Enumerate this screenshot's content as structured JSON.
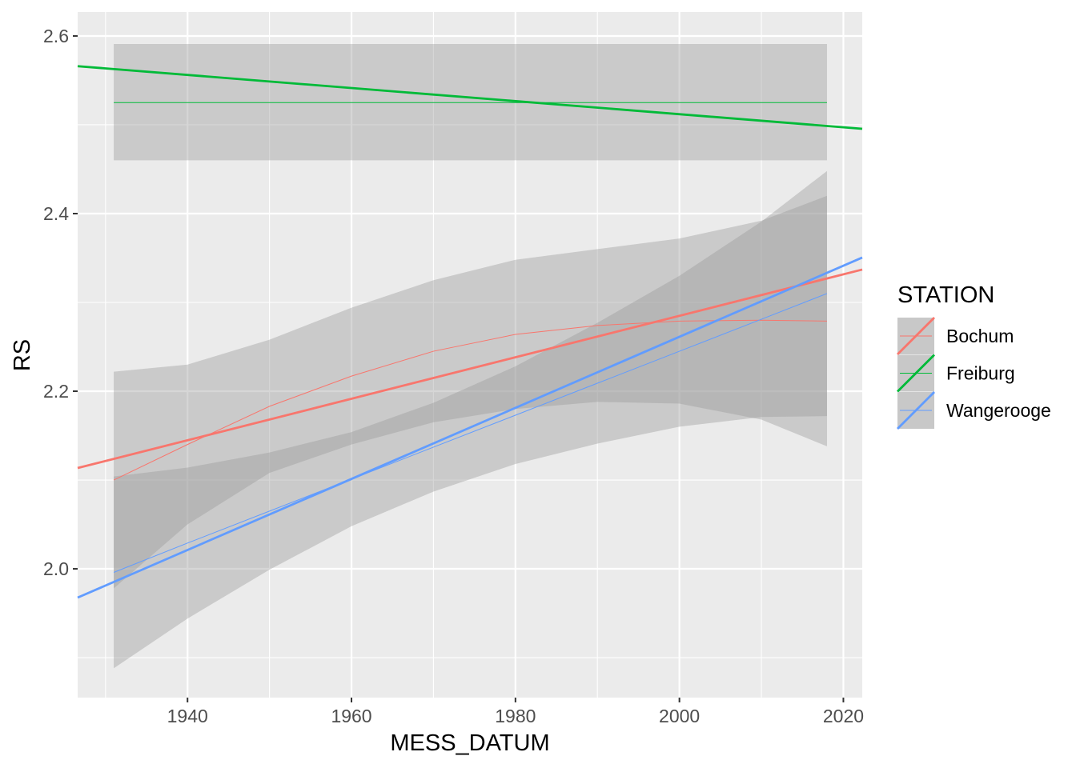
{
  "chart_data": {
    "type": "line",
    "title": "",
    "xlabel": "MESS_DATUM",
    "ylabel": "RS",
    "xlim": [
      1926.6,
      2022.3
    ],
    "ylim": [
      1.855,
      2.627
    ],
    "x_ticks": [
      1940,
      1960,
      1980,
      2000,
      2020
    ],
    "x_tick_labels": [
      "1940",
      "1960",
      "1980",
      "2000",
      "2020"
    ],
    "y_ticks": [
      2.0,
      2.2,
      2.4,
      2.6
    ],
    "y_tick_labels": [
      "2.0",
      "2.2",
      "2.4",
      "2.6"
    ],
    "grid": true,
    "legend": {
      "title": "STATION",
      "placement": "right"
    },
    "smooth_x": [
      1931,
      1940,
      1950,
      1960,
      1970,
      1980,
      1990,
      2000,
      2010,
      2018
    ],
    "series": [
      {
        "name": "Bochum",
        "color": "#F8766D",
        "linear_fit": {
          "x": [
            1926.6,
            2022.3
          ],
          "y": [
            2.1135,
            2.337
          ]
        },
        "smooth": [
          2.1,
          2.14,
          2.183,
          2.217,
          2.245,
          2.264,
          2.274,
          2.279,
          2.28,
          2.279
        ],
        "smooth_lower": [
          1.978,
          2.05,
          2.108,
          2.14,
          2.165,
          2.18,
          2.188,
          2.186,
          2.168,
          2.138
        ],
        "smooth_upper": [
          2.222,
          2.23,
          2.258,
          2.294,
          2.325,
          2.348,
          2.36,
          2.372,
          2.392,
          2.42
        ]
      },
      {
        "name": "Freiburg",
        "color": "#00BA38",
        "linear_fit": {
          "x": [
            1926.6,
            2022.3
          ],
          "y": [
            2.566,
            2.4955
          ]
        },
        "smooth": [
          2.525,
          2.525,
          2.525,
          2.525,
          2.525,
          2.525,
          2.525,
          2.525,
          2.525,
          2.525
        ],
        "smooth_lower": [
          2.46,
          2.46,
          2.46,
          2.46,
          2.46,
          2.46,
          2.46,
          2.46,
          2.46,
          2.46
        ],
        "smooth_upper": [
          2.591,
          2.591,
          2.591,
          2.591,
          2.591,
          2.591,
          2.591,
          2.591,
          2.591,
          2.591
        ]
      },
      {
        "name": "Wangerooge",
        "color": "#619CFF",
        "linear_fit": {
          "x": [
            1926.6,
            2022.3
          ],
          "y": [
            1.9676,
            2.3505
          ]
        },
        "smooth": [
          1.996,
          2.029,
          2.065,
          2.101,
          2.137,
          2.173,
          2.209,
          2.245,
          2.281,
          2.31
        ],
        "smooth_lower": [
          1.888,
          1.944,
          1.999,
          2.048,
          2.087,
          2.118,
          2.141,
          2.16,
          2.171,
          2.172
        ],
        "smooth_upper": [
          2.104,
          2.114,
          2.131,
          2.154,
          2.187,
          2.228,
          2.277,
          2.33,
          2.391,
          2.448
        ]
      }
    ]
  }
}
